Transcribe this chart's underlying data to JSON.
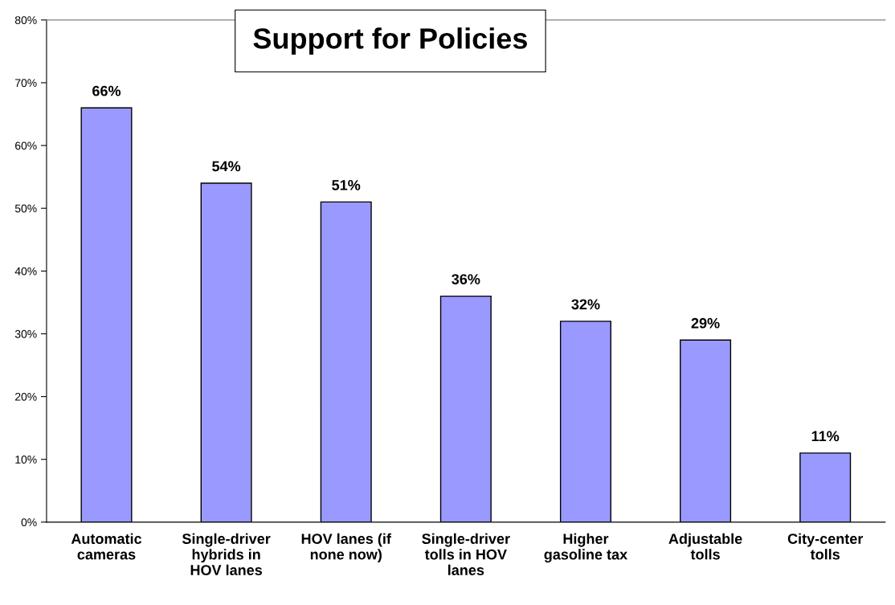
{
  "chart_data": {
    "type": "bar",
    "title": "Support for Policies",
    "categories": [
      "Automatic cameras",
      "Single-driver hybrids in HOV lanes",
      "HOV lanes (if none now)",
      "Single-driver tolls in HOV lanes",
      "Higher gasoline tax",
      "Adjustable tolls",
      "City-center tolls"
    ],
    "values": [
      66,
      54,
      51,
      36,
      32,
      29,
      11
    ],
    "color": "#9999ff",
    "value_labels": [
      "66%",
      "54%",
      "51%",
      "36%",
      "32%",
      "29%",
      "11%"
    ],
    "ylim": [
      0,
      80
    ],
    "yticks": [
      {
        "value": 0,
        "label": "0%"
      },
      {
        "value": 10,
        "label": "10%"
      },
      {
        "value": 20,
        "label": "20%"
      },
      {
        "value": 30,
        "label": "30%"
      },
      {
        "value": 40,
        "label": "40%"
      },
      {
        "value": 50,
        "label": "50%"
      },
      {
        "value": 60,
        "label": "60%"
      },
      {
        "value": 70,
        "label": "70%"
      },
      {
        "value": 80,
        "label": "80%"
      }
    ],
    "grid": false,
    "legend": false
  }
}
